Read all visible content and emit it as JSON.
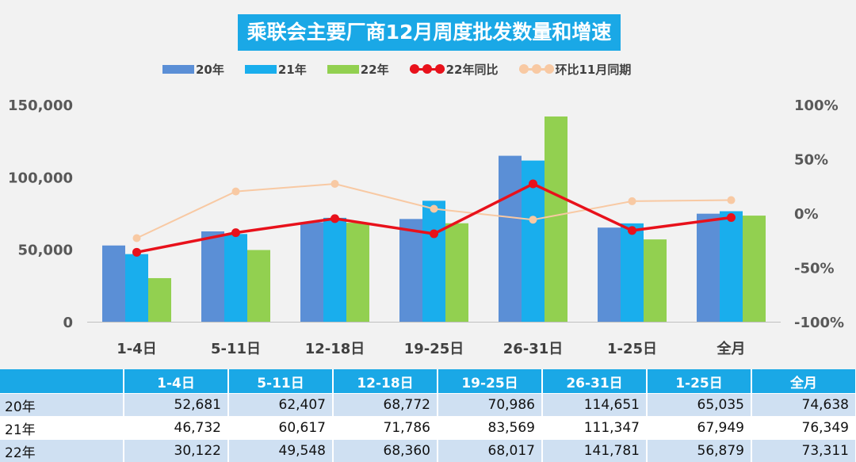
{
  "colors": {
    "s20": "#5b8fd6",
    "s21": "#19aeed",
    "s22": "#92d050",
    "yoy": "#e8111b",
    "mom": "#f8c9a3",
    "title_bg": "#1aa8e6"
  },
  "chart_data": {
    "type": "bar",
    "title": "乘联会主要厂商12月周度批发数量和增速",
    "categories": [
      "1-4日",
      "5-11日",
      "12-18日",
      "19-25日",
      "26-31日",
      "1-25日",
      "全月"
    ],
    "series": [
      {
        "name": "20年",
        "kind": "bar",
        "axis": "left",
        "values": [
          52681,
          62407,
          68772,
          70986,
          114651,
          65035,
          74638
        ]
      },
      {
        "name": "21年",
        "kind": "bar",
        "axis": "left",
        "values": [
          46732,
          60617,
          71786,
          83569,
          111347,
          67949,
          76349
        ]
      },
      {
        "name": "22年",
        "kind": "bar",
        "axis": "left",
        "values": [
          30122,
          49548,
          68360,
          68017,
          141781,
          56879,
          73311
        ]
      },
      {
        "name": "22年同比",
        "kind": "line",
        "axis": "right",
        "values": [
          -36,
          -18,
          -5,
          -19,
          27,
          -16,
          -4
        ]
      },
      {
        "name": "环比11月同期",
        "kind": "line",
        "axis": "right",
        "values": [
          -23,
          20,
          27,
          4,
          -6,
          11,
          12
        ]
      }
    ],
    "ylim": [
      0,
      150000
    ],
    "yticks": [
      "0",
      "50,000",
      "100,000",
      "150,000"
    ],
    "y2lim": [
      -100,
      100
    ],
    "y2ticks": [
      "-100%",
      "-50%",
      "0%",
      "50%",
      "100%"
    ],
    "legend_position": "top",
    "grid": false
  },
  "table": {
    "headers": [
      "",
      "1-4日",
      "5-11日",
      "12-18日",
      "19-25日",
      "26-31日",
      "1-25日",
      "全月"
    ],
    "rows": [
      {
        "label": "20年",
        "values": [
          "52,681",
          "62,407",
          "68,772",
          "70,986",
          "114,651",
          "65,035",
          "74,638"
        ]
      },
      {
        "label": "21年",
        "values": [
          "46,732",
          "60,617",
          "71,786",
          "83,569",
          "111,347",
          "67,949",
          "76,349"
        ]
      },
      {
        "label": "22年",
        "values": [
          "30,122",
          "49,548",
          "68,360",
          "68,017",
          "141,781",
          "56,879",
          "73,311"
        ]
      }
    ]
  }
}
